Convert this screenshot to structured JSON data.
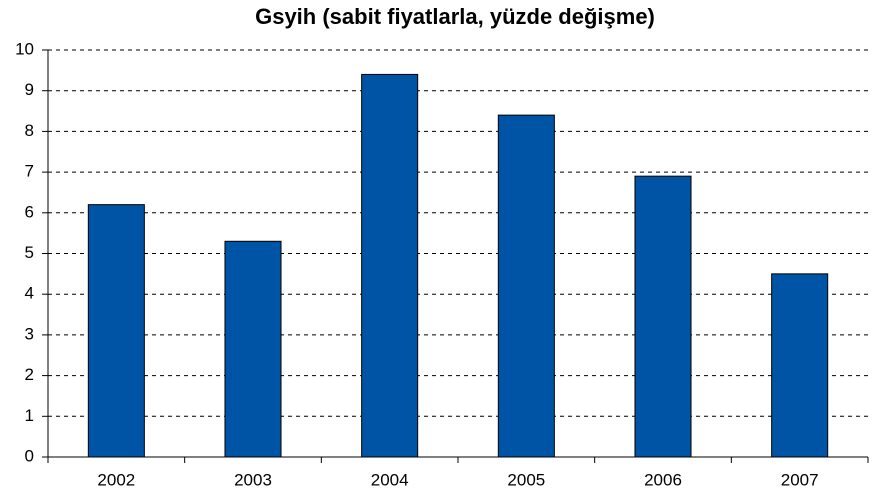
{
  "chart_data": {
    "type": "bar",
    "title": "Gsyih (sabit fiyatlarla, yüzde değişme)",
    "categories": [
      "2002",
      "2003",
      "2004",
      "2005",
      "2006",
      "2007"
    ],
    "values": [
      6.2,
      5.3,
      9.4,
      8.4,
      6.9,
      4.5
    ],
    "color": "#0054a6",
    "ylim": [
      0,
      10
    ],
    "yticks": [
      0,
      1,
      2,
      3,
      4,
      5,
      6,
      7,
      8,
      9,
      10
    ],
    "grid": true
  }
}
